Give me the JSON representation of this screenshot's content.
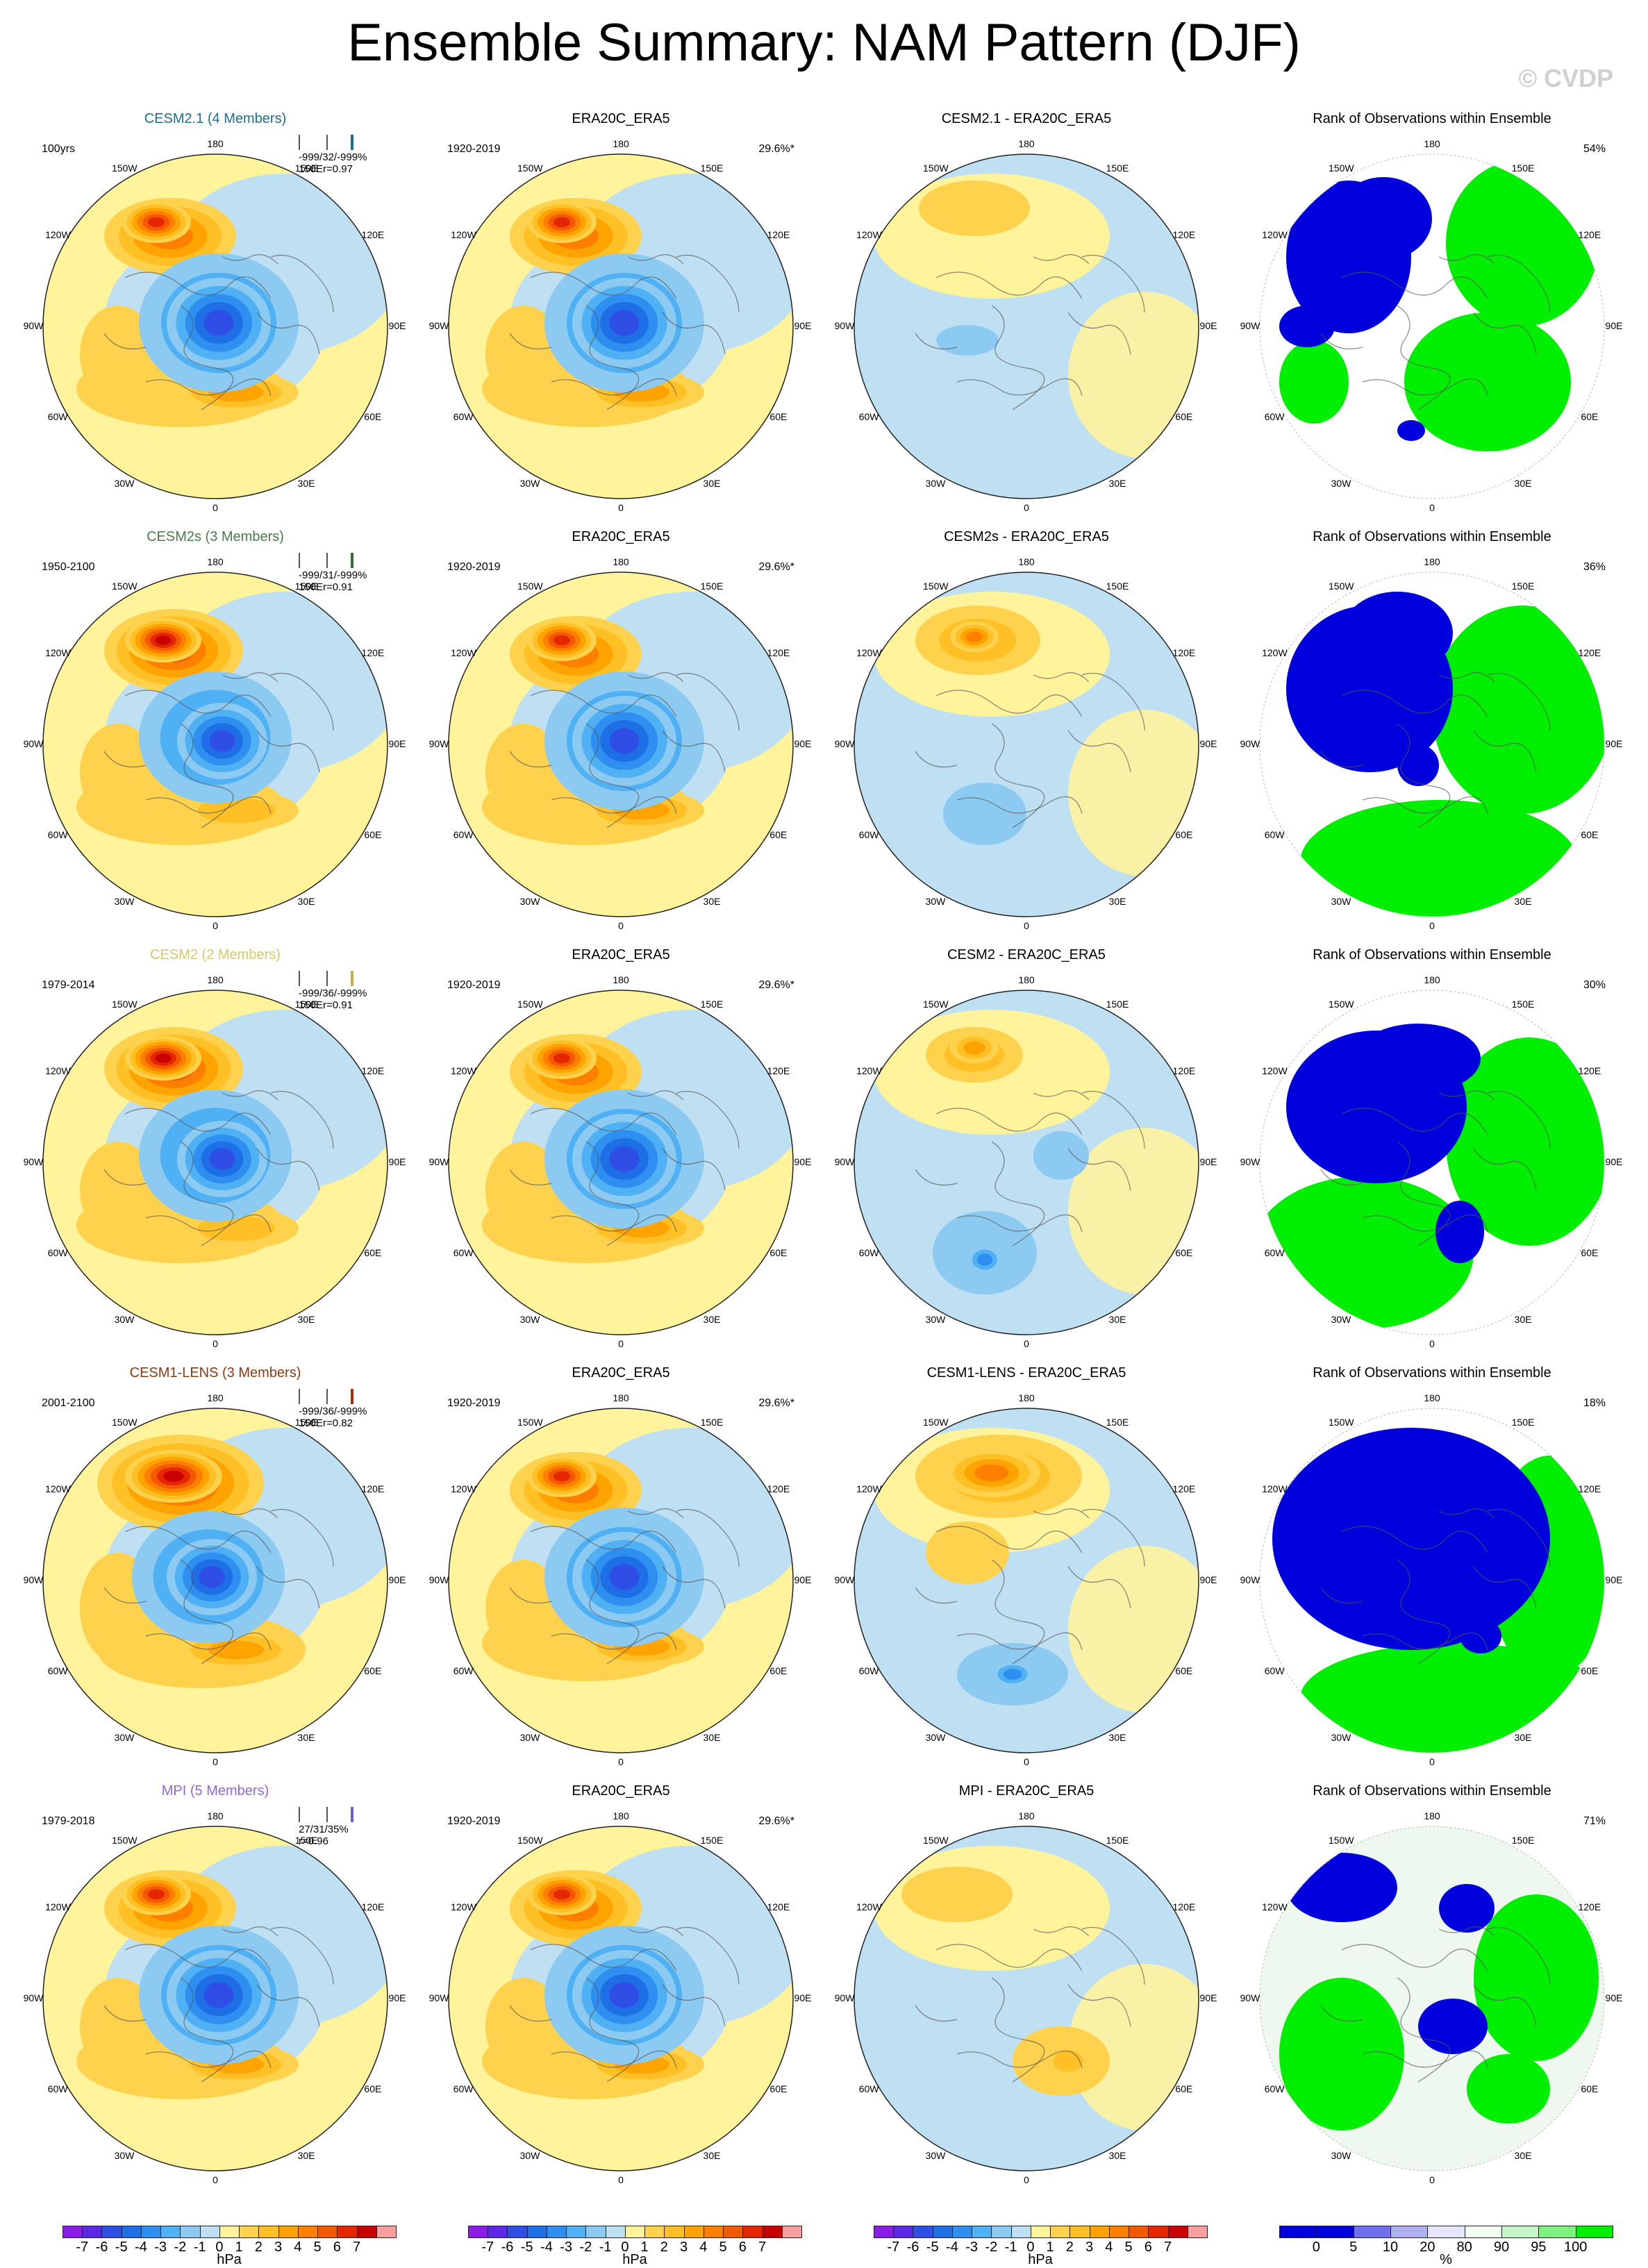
{
  "title": "Ensemble Summary: NAM Pattern (DJF)",
  "copyright": "© CVDP",
  "lon_labels": [
    "180",
    "150E",
    "120E",
    "90E",
    "60E",
    "30E",
    "0",
    "30W",
    "60W",
    "90W",
    "120W",
    "150W"
  ],
  "colors": {
    "d7": "#8a1ee6",
    "d6": "#5a28e6",
    "d5": "#2f4ee6",
    "d4": "#1e6ee6",
    "d3": "#2e8ff0",
    "d2": "#4fb0f4",
    "d1": "#8ccaf2",
    "d0": "#bfe0f2",
    "p0": "#fff39c",
    "p1": "#ffd24d",
    "p2": "#ffc025",
    "p3": "#ffa300",
    "p4": "#ff8000",
    "p5": "#f35a00",
    "p6": "#e52600",
    "p7": "#c80000",
    "p8": "#f8a0a0",
    "rank_blue": "#0000dd",
    "rank_green": "#00ee00",
    "rank_white": "#ffffff",
    "rank_pale": "#eef8ee"
  },
  "rows": [
    {
      "model": {
        "title": "CESM2.1 (4 Members)",
        "title_color": "#1a6e8e",
        "period": "100yrs",
        "stats_line1": "-999/32/-999%",
        "stats_line2": "150Er=0.97",
        "bar_color": "#1a6e8e",
        "shape": 0
      },
      "obs": {
        "title": "ERA20C_ERA5",
        "period": "1920-2019",
        "pct": "29.6%*",
        "shape": 0
      },
      "diff": {
        "title": "CESM2.1 - ERA20C_ERA5",
        "shape": 1
      },
      "rank": {
        "title": "Rank of Observations within Ensemble",
        "pct": "54%",
        "shape": 0
      }
    },
    {
      "model": {
        "title": "CESM2s (3 Members)",
        "title_color": "#4a7a4a",
        "period": "1950-2100",
        "stats_line1": "-999/31/-999%",
        "stats_line2": "150Er=0.91",
        "bar_color": "#3a6a3a",
        "shape": 1
      },
      "obs": {
        "title": "ERA20C_ERA5",
        "period": "1920-2019",
        "pct": "29.6%*",
        "shape": 0
      },
      "diff": {
        "title": "CESM2s - ERA20C_ERA5",
        "shape": 2
      },
      "rank": {
        "title": "Rank of Observations within Ensemble",
        "pct": "36%",
        "shape": 1
      }
    },
    {
      "model": {
        "title": "CESM2 (2 Members)",
        "title_color": "#d8c866",
        "period": "1979-2014",
        "stats_line1": "-999/36/-999%",
        "stats_line2": "150Er=0.91",
        "bar_color": "#c8b040",
        "shape": 1
      },
      "obs": {
        "title": "ERA20C_ERA5",
        "period": "1920-2019",
        "pct": "29.6%*",
        "shape": 0
      },
      "diff": {
        "title": "CESM2 - ERA20C_ERA5",
        "shape": 3
      },
      "rank": {
        "title": "Rank of Observations within Ensemble",
        "pct": "30%",
        "shape": 2
      }
    },
    {
      "model": {
        "title": "CESM1-LENS (3 Members)",
        "title_color": "#8b3a10",
        "period": "2001-2100",
        "stats_line1": "-999/36/-999%",
        "stats_line2": "150Er=0.82",
        "bar_color": "#a03010",
        "shape": 2
      },
      "obs": {
        "title": "ERA20C_ERA5",
        "period": "1920-2019",
        "pct": "29.6%*",
        "shape": 0
      },
      "diff": {
        "title": "CESM1-LENS - ERA20C_ERA5",
        "shape": 4
      },
      "rank": {
        "title": "Rank of Observations within Ensemble",
        "pct": "18%",
        "shape": 3
      }
    },
    {
      "model": {
        "title": "MPI (5 Members)",
        "title_color": "#8a6ad6",
        "period": "1979-2018",
        "stats_line1": "27/31/35%",
        "stats_line2": "r=0.96",
        "bar_color": "#7a5ac6",
        "shape": 0
      },
      "obs": {
        "title": "ERA20C_ERA5",
        "period": "1920-2019",
        "pct": "29.6%*",
        "shape": 0
      },
      "diff": {
        "title": "MPI - ERA20C_ERA5",
        "shape": 5
      },
      "rank": {
        "title": "Rank of Observations within Ensemble",
        "pct": "71%",
        "shape": 4
      }
    }
  ],
  "colorbar_hpa": {
    "ticks": [
      "-7",
      "-6",
      "-5",
      "-4",
      "-3",
      "-2",
      "-1",
      "0",
      "1",
      "2",
      "3",
      "4",
      "5",
      "6",
      "7"
    ],
    "unit": "hPa"
  },
  "colorbar_rank": {
    "ticks": [
      "0",
      "5",
      "10",
      "20",
      "80",
      "90",
      "95",
      "100"
    ],
    "unit": "%",
    "colors": [
      "#0000dd",
      "#7070ee",
      "#b0b0f0",
      "#e6e6fa",
      "#f4fff4",
      "#c8f5c8",
      "#80f080",
      "#00ee00"
    ]
  }
}
